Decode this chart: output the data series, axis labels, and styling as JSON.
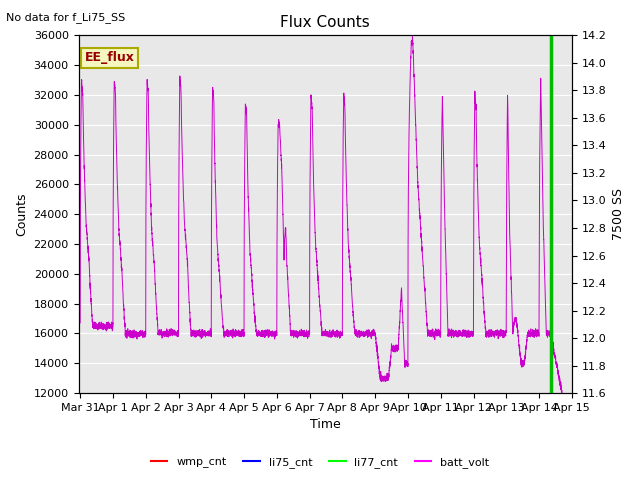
{
  "title": "Flux Counts",
  "xlabel": "Time",
  "ylabel_left": "Counts",
  "ylabel_right": "7500 SS",
  "top_left_text": "No data for f_Li75_SS",
  "annotation_box": "EE_flux",
  "ylim_left": [
    12000,
    36000
  ],
  "ylim_right": [
    11.6,
    14.2
  ],
  "yticks_left": [
    12000,
    14000,
    16000,
    18000,
    20000,
    22000,
    24000,
    26000,
    28000,
    30000,
    32000,
    34000,
    36000
  ],
  "yticks_right": [
    11.6,
    11.8,
    12.0,
    12.2,
    12.4,
    12.6,
    12.8,
    13.0,
    13.2,
    13.4,
    13.6,
    13.8,
    14.0,
    14.2
  ],
  "bg_color": "#e8e8e8",
  "fig_bg_color": "#ffffff",
  "batt_volt_color": "#cc00cc",
  "li77_cnt_color": "#00bb00",
  "xmin_days": -0.05,
  "xmax_days": 14.75,
  "vline_x_days": 14.35,
  "xtick_positions": [
    0,
    1,
    2,
    3,
    4,
    5,
    6,
    7,
    8,
    9,
    10,
    11,
    12,
    13,
    14,
    15
  ],
  "xtick_labels": [
    "Mar 31",
    "Apr 1",
    "Apr 2",
    "Apr 3",
    "Apr 4",
    "Apr 5",
    "Apr 6",
    "Apr 7",
    "Apr 8",
    "Apr 9",
    "Apr 10",
    "Apr 11",
    "Apr 12",
    "Apr 13",
    "Apr 14",
    "Apr 15"
  ]
}
